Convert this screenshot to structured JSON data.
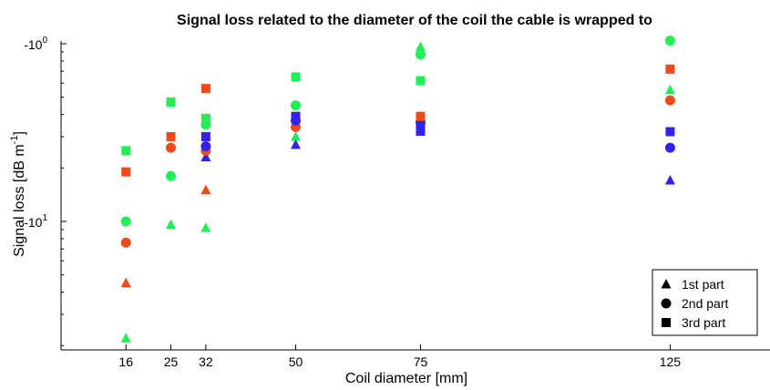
{
  "chart_data": {
    "type": "scatter",
    "title": "Signal loss related to the diameter of the coil the cable is wrapped to",
    "xlabel": "Coil diameter [mm]",
    "ylabel_parts": {
      "main": "Signal loss [dB m",
      "exp": "-1",
      "close": "]"
    },
    "x_ticks": [
      16,
      25,
      32,
      50,
      75,
      125
    ],
    "y_ticks": [
      {
        "value": -1,
        "base": "-10",
        "exp": "0"
      },
      {
        "value": -0.1,
        "base": "-10",
        "exp": "1"
      }
    ],
    "xlim": [
      3,
      145
    ],
    "y_log_magnitude_range": [
      0.02,
      1
    ],
    "y_scale": "log",
    "grid": false,
    "legend": {
      "placement": "bottom-right",
      "entries": [
        {
          "label": "1st part",
          "marker": "triangle"
        },
        {
          "label": "2nd part",
          "marker": "circle"
        },
        {
          "label": "3rd part",
          "marker": "square"
        }
      ]
    },
    "colors": {
      "red": "#f04a1a",
      "green": "#22ee55",
      "blue": "#3322ee"
    },
    "series": [
      {
        "marker": "triangle",
        "color": "green",
        "x": [
          16,
          25,
          32,
          50,
          75,
          125
        ],
        "y": [
          -0.022,
          -0.096,
          -0.092,
          -0.3,
          -0.96,
          -0.55
        ]
      },
      {
        "marker": "triangle",
        "color": "red",
        "x": [
          16,
          32,
          75
        ],
        "y": [
          -0.045,
          -0.15,
          -0.39
        ]
      },
      {
        "marker": "triangle",
        "color": "blue",
        "x": [
          32,
          50,
          75,
          125
        ],
        "y": [
          -0.23,
          -0.27,
          -0.32,
          -0.17
        ]
      },
      {
        "marker": "circle",
        "color": "green",
        "x": [
          16,
          25,
          32,
          50,
          75,
          125
        ],
        "y": [
          -0.1,
          -0.18,
          -0.35,
          -0.45,
          -0.87,
          -1.04
        ]
      },
      {
        "marker": "circle",
        "color": "red",
        "x": [
          16,
          25,
          32,
          50,
          125
        ],
        "y": [
          -0.076,
          -0.26,
          -0.25,
          -0.34,
          -0.48
        ]
      },
      {
        "marker": "circle",
        "color": "blue",
        "x": [
          32,
          50,
          75,
          125
        ],
        "y": [
          -0.265,
          -0.37,
          -0.36,
          -0.26
        ]
      },
      {
        "marker": "square",
        "color": "green",
        "x": [
          16,
          25,
          32,
          50,
          75
        ],
        "y": [
          -0.25,
          -0.47,
          -0.38,
          -0.65,
          -0.62
        ]
      },
      {
        "marker": "square",
        "color": "red",
        "x": [
          16,
          25,
          32,
          50,
          75,
          125
        ],
        "y": [
          -0.19,
          -0.3,
          -0.56,
          -0.39,
          -0.39,
          -0.72
        ]
      },
      {
        "marker": "square",
        "color": "blue",
        "x": [
          32,
          50,
          75,
          125
        ],
        "y": [
          -0.3,
          -0.39,
          -0.33,
          -0.32
        ]
      }
    ]
  }
}
